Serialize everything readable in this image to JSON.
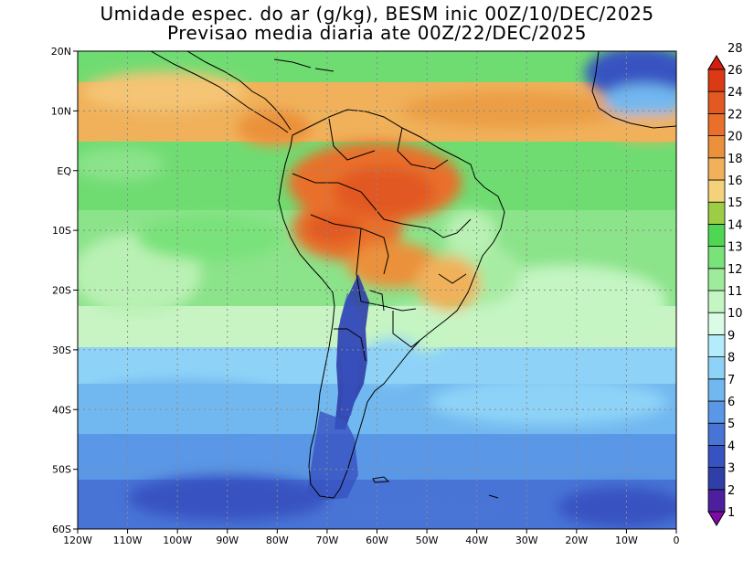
{
  "title": "Umidade espec. do ar (g/kg), BESM inic 00Z/10/DEC/2025",
  "subtitle": "Previsao media diaria ate 00Z/22/DEC/2025",
  "map": {
    "lat_ticks": [
      "20N",
      "10N",
      "EQ",
      "10S",
      "20S",
      "30S",
      "40S",
      "50S",
      "60S"
    ],
    "lon_ticks": [
      "120W",
      "110W",
      "100W",
      "90W",
      "80W",
      "70W",
      "60W",
      "50W",
      "40W",
      "30W",
      "20W",
      "10W",
      "0"
    ]
  },
  "colorbar": {
    "labels": [
      "1",
      "2",
      "3",
      "4",
      "5",
      "6",
      "7",
      "8",
      "9",
      "10",
      "11",
      "12",
      "13",
      "14",
      "15",
      "16",
      "18",
      "20",
      "22",
      "24",
      "26",
      "28"
    ],
    "colors": [
      "#7d0ca6",
      "#4e1f9c",
      "#2f3ea8",
      "#3752c1",
      "#4874d6",
      "#5a97e6",
      "#72b8f0",
      "#8ed3f7",
      "#b5ecfb",
      "#dafbe5",
      "#c4f5c3",
      "#9eec9b",
      "#79e27a",
      "#4fd653",
      "#9ccd45",
      "#f4d27c",
      "#f0b15a",
      "#eb913b",
      "#e9702b",
      "#e25921",
      "#da3a14",
      "#d61e10"
    ]
  }
}
